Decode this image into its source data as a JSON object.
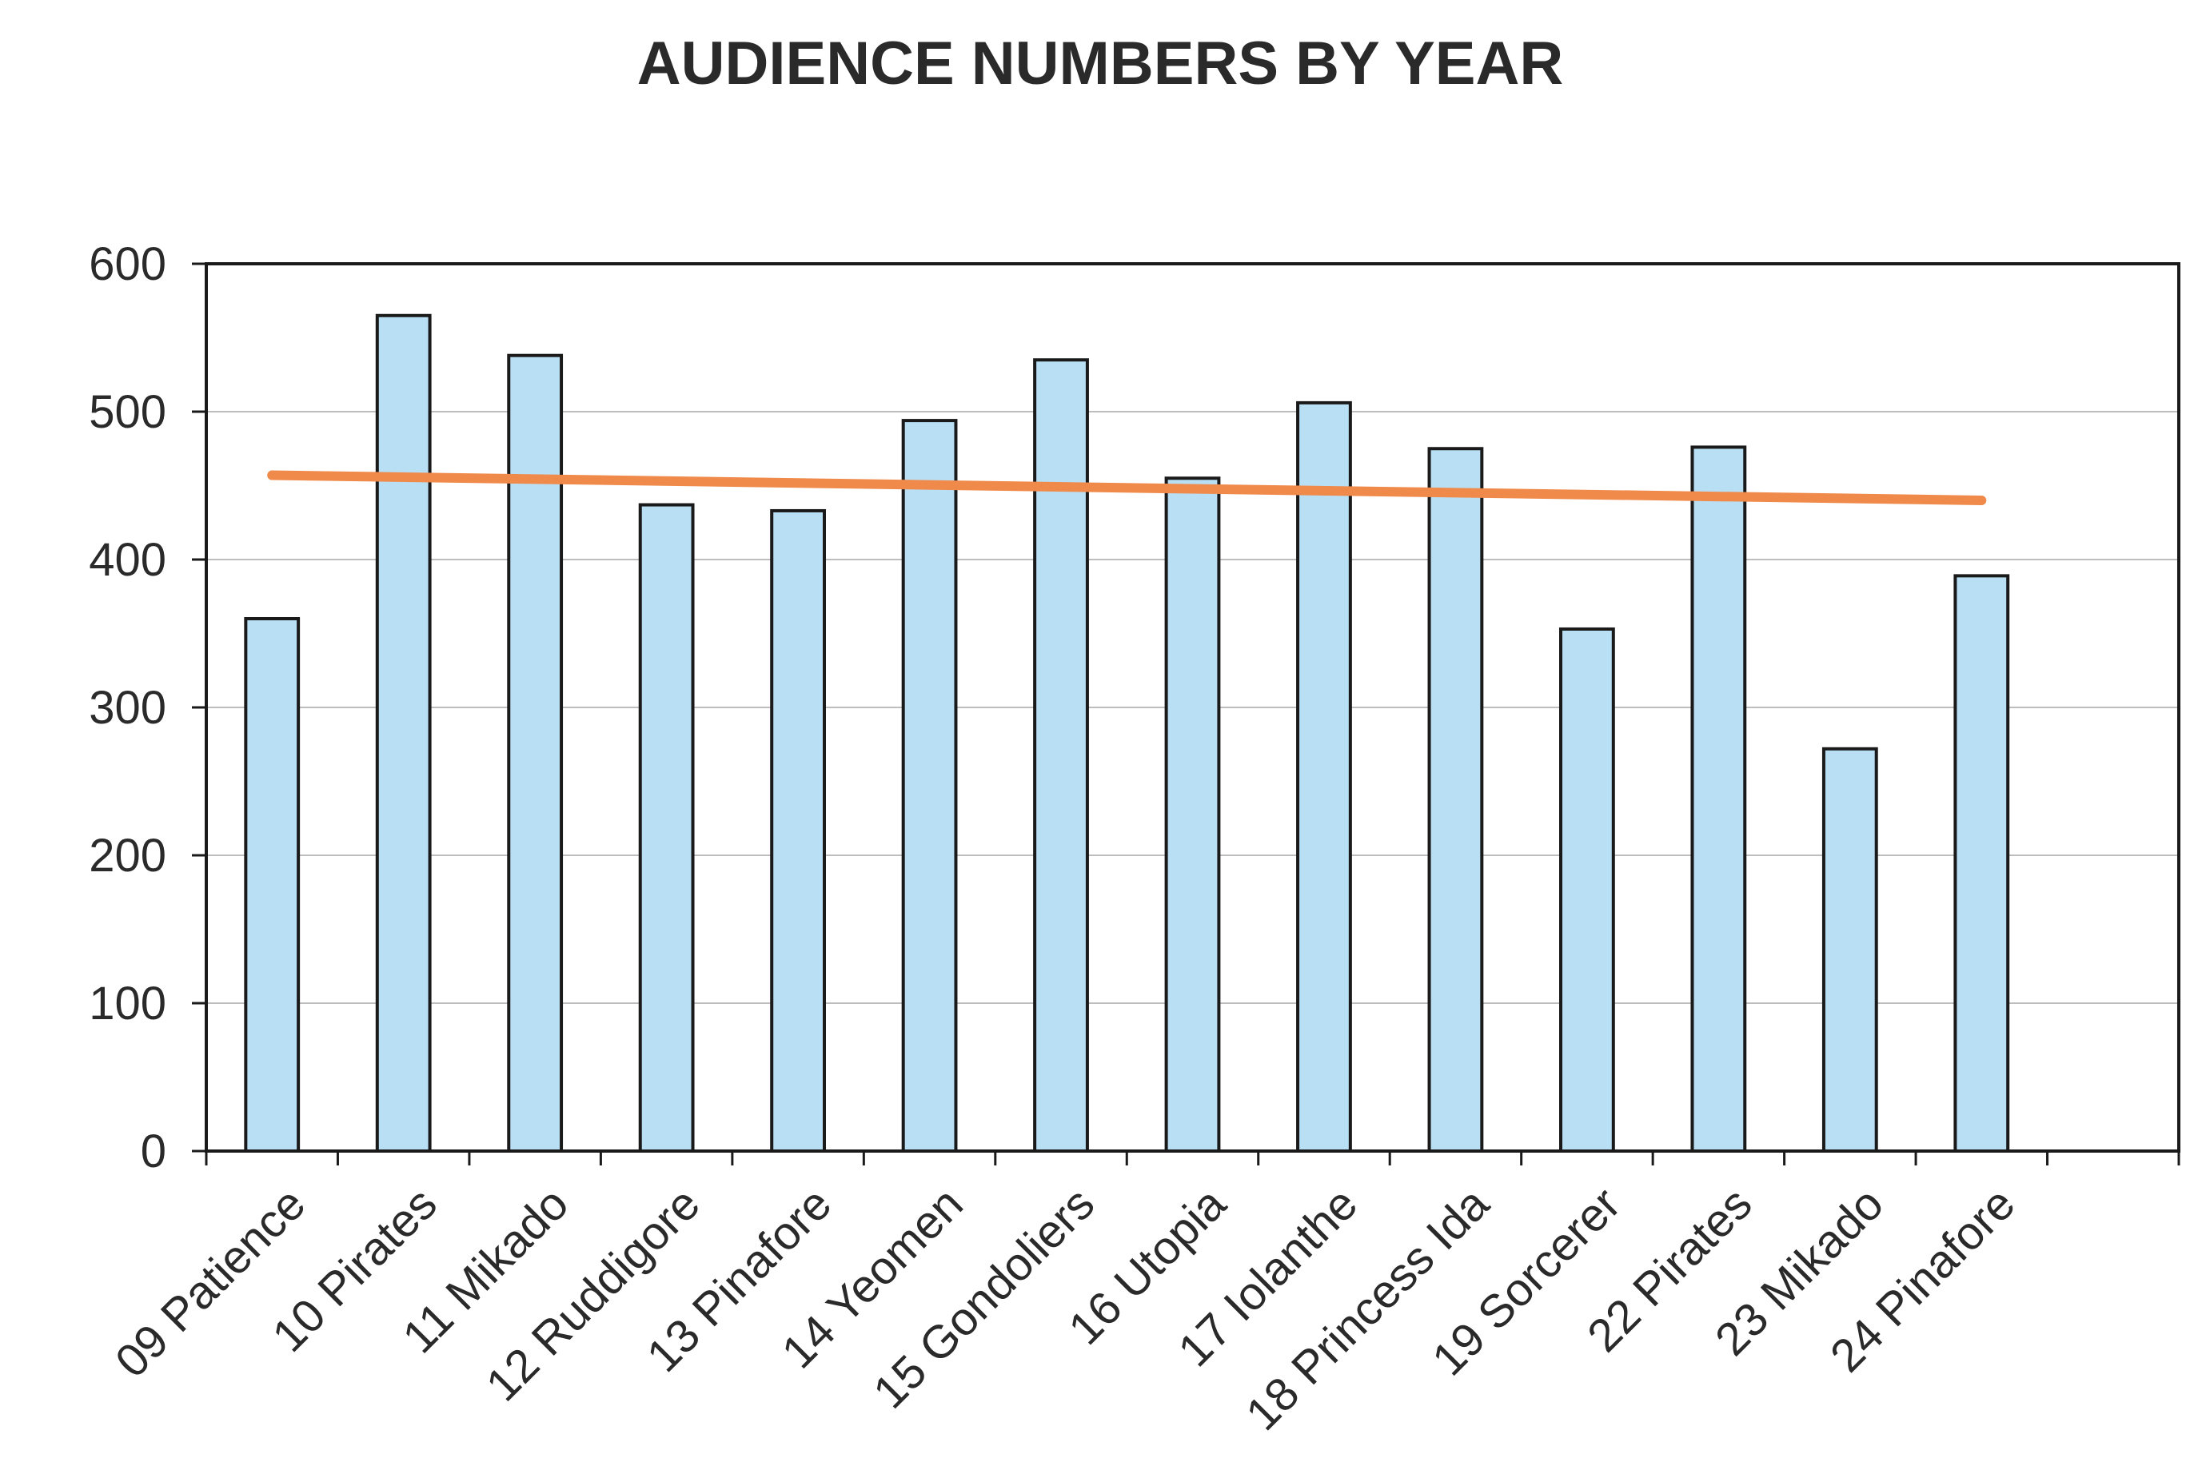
{
  "chart_data": {
    "type": "bar",
    "title": "AUDIENCE NUMBERS BY YEAR",
    "xlabel": "",
    "ylabel": "",
    "categories": [
      "09 Patience",
      "10 Pirates",
      "11 Mikado",
      "12 Ruddigore",
      "13 Pinafore",
      "14 Yeomen",
      "15 Gondoliers",
      "16 Utopia",
      "17 Iolanthe",
      "18 Princess Ida",
      "19 Sorcerer",
      "22 Pirates",
      "23 Mikado",
      "24 Pinafore"
    ],
    "values": [
      360,
      565,
      538,
      437,
      433,
      494,
      535,
      455,
      506,
      475,
      353,
      476,
      272,
      389
    ],
    "ylim": [
      0,
      600
    ],
    "yticks": [
      "0",
      "100",
      "200",
      "300",
      "400",
      "500",
      "600"
    ],
    "grid": true,
    "trendline": {
      "type": "linear",
      "start": 457,
      "end": 440,
      "color": "#f08a4b"
    },
    "colors": {
      "bar_fill": "#b9dff5",
      "bar_stroke": "#1a1a1a",
      "trend": "#f08a4b",
      "grid": "#bdbdbd"
    }
  }
}
